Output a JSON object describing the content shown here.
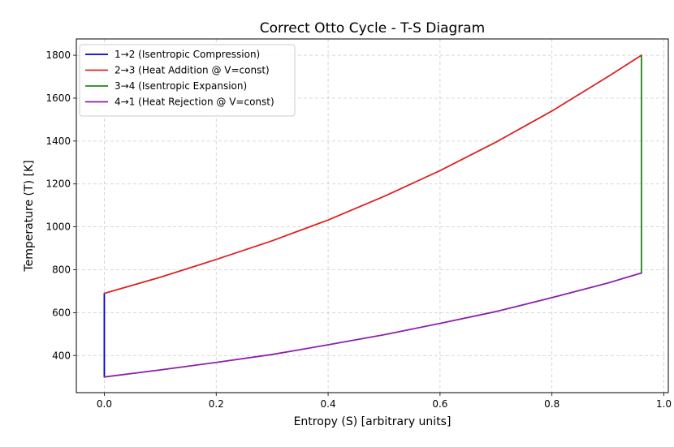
{
  "chart_data": {
    "type": "line",
    "title": "Correct Otto Cycle - T-S Diagram",
    "xlabel": "Entropy (S) [arbitrary units]",
    "ylabel": "Temperature (T) [K]",
    "xlim": [
      -0.05,
      1.008
    ],
    "ylim": [
      227,
      1876
    ],
    "xticks": [
      0.0,
      0.2,
      0.4,
      0.6,
      0.8,
      1.0
    ],
    "xtick_labels": [
      "0.0",
      "0.2",
      "0.4",
      "0.6",
      "0.8",
      "1.0"
    ],
    "yticks": [
      400,
      600,
      800,
      1000,
      1200,
      1400,
      1600,
      1800
    ],
    "ytick_labels": [
      "400",
      "600",
      "800",
      "1000",
      "1200",
      "1400",
      "1600",
      "1800"
    ],
    "grid": true,
    "legend_position": "upper-left",
    "series": [
      {
        "name": "1→2 (Isentropic Compression)",
        "color": "#0000cc",
        "x": [
          0.0,
          0.0
        ],
        "y": [
          300,
          690
        ]
      },
      {
        "name": "2→3 (Heat Addition @ V=const)",
        "color": "#dd2222",
        "x": [
          0.0,
          0.1,
          0.2,
          0.3,
          0.4,
          0.5,
          0.6,
          0.7,
          0.8,
          0.9,
          0.96
        ],
        "y": [
          690,
          765,
          848,
          935,
          1032,
          1142,
          1262,
          1395,
          1540,
          1700,
          1800
        ]
      },
      {
        "name": "3→4 (Isentropic Expansion)",
        "color": "#1a8a1a",
        "x": [
          0.96,
          0.96
        ],
        "y": [
          1800,
          785
        ]
      },
      {
        "name": "4→1 (Heat Rejection @ V=const)",
        "color": "#8b22a8",
        "x": [
          0.96,
          0.9,
          0.8,
          0.7,
          0.6,
          0.5,
          0.4,
          0.3,
          0.2,
          0.1,
          0.0
        ],
        "y": [
          785,
          738,
          670,
          605,
          550,
          497,
          450,
          405,
          368,
          333,
          300
        ]
      }
    ]
  }
}
